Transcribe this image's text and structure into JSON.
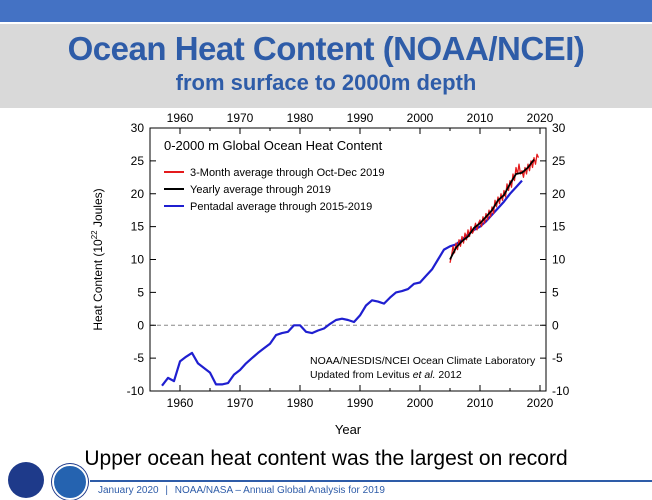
{
  "header": {
    "title": "Ocean Heat Content (NOAA/NCEI)",
    "subtitle": "from surface to 2000m depth"
  },
  "caption": "Upper ocean heat content was the largest on record",
  "footer": {
    "date": "January 2020",
    "separator": "|",
    "text": "NOAA/NASA – Annual Global Analysis for 2019"
  },
  "colors": {
    "header_band": "#4472c4",
    "title": "#2e5ca8",
    "three_month": "#e41a1c",
    "yearly": "#000000",
    "pentadal": "#1f1fd0"
  },
  "logos": [
    "nasa-logo",
    "noaa-logo"
  ],
  "chart_data": {
    "type": "line",
    "title": "0-2000 m Global Ocean Heat Content",
    "xlabel": "Year",
    "ylabel_main": "Heat Content (10",
    "ylabel_sup": "22",
    "ylabel_tail": " Joules)",
    "xlim": [
      1955,
      2021
    ],
    "ylim": [
      -10,
      30
    ],
    "xticks": [
      1960,
      1970,
      1980,
      1990,
      2000,
      2010,
      2020
    ],
    "yticks": [
      -10,
      -5,
      0,
      5,
      10,
      15,
      20,
      25,
      30
    ],
    "grid": false,
    "zero_line": "dashed",
    "legend_position": "top-left",
    "annotation_line1": "NOAA/NESDIS/NCEI Ocean Climate Laboratory",
    "annotation_line2_prefix": "Updated from Levitus ",
    "annotation_line2_italic": "et al.",
    "annotation_line2_suffix": " 2012",
    "series": [
      {
        "name": "3-Month average through Oct-Dec 2019",
        "color": "#e41a1c",
        "x": [
          2005.0,
          2005.25,
          2005.5,
          2005.75,
          2006.0,
          2006.25,
          2006.5,
          2006.75,
          2007.0,
          2007.25,
          2007.5,
          2007.75,
          2008.0,
          2008.25,
          2008.5,
          2008.75,
          2009.0,
          2009.25,
          2009.5,
          2009.75,
          2010.0,
          2010.25,
          2010.5,
          2010.75,
          2011.0,
          2011.25,
          2011.5,
          2011.75,
          2012.0,
          2012.25,
          2012.5,
          2012.75,
          2013.0,
          2013.25,
          2013.5,
          2013.75,
          2014.0,
          2014.25,
          2014.5,
          2014.75,
          2015.0,
          2015.25,
          2015.5,
          2015.75,
          2016.0,
          2016.25,
          2016.5,
          2016.75,
          2017.0,
          2017.25,
          2017.5,
          2017.75,
          2018.0,
          2018.25,
          2018.5,
          2018.75,
          2019.0,
          2019.25,
          2019.5,
          2019.75
        ],
        "values": [
          9.5,
          10.5,
          12.0,
          11.0,
          12.5,
          11.5,
          13.0,
          12.0,
          13.5,
          12.5,
          14.0,
          13.0,
          14.5,
          13.5,
          15.0,
          14.0,
          14.5,
          15.5,
          14.5,
          15.5,
          16.0,
          15.0,
          16.5,
          15.5,
          17.0,
          16.0,
          17.5,
          16.5,
          18.0,
          17.0,
          19.0,
          18.0,
          19.5,
          18.5,
          20.0,
          19.0,
          20.5,
          19.5,
          21.5,
          20.5,
          22.0,
          21.0,
          23.0,
          22.0,
          24.0,
          23.0,
          24.5,
          23.0,
          23.5,
          22.5,
          24.0,
          23.0,
          24.5,
          23.5,
          25.0,
          24.0,
          25.5,
          24.5,
          26.0,
          25.5
        ]
      },
      {
        "name": "Yearly average through 2019",
        "color": "#000000",
        "x": [
          2005,
          2006,
          2007,
          2008,
          2009,
          2010,
          2011,
          2012,
          2013,
          2014,
          2015,
          2016,
          2017,
          2018,
          2019
        ],
        "values": [
          10.0,
          11.8,
          12.8,
          13.5,
          14.8,
          15.5,
          16.5,
          17.5,
          19.0,
          19.8,
          21.5,
          23.0,
          23.2,
          24.0,
          25.2
        ]
      },
      {
        "name": "Pentadal average through 2015-2019",
        "color": "#1f1fd0",
        "x": [
          1957,
          1958,
          1959,
          1960,
          1961,
          1962,
          1963,
          1964,
          1965,
          1966,
          1967,
          1968,
          1969,
          1970,
          1971,
          1972,
          1973,
          1974,
          1975,
          1976,
          1977,
          1978,
          1979,
          1980,
          1981,
          1982,
          1983,
          1984,
          1985,
          1986,
          1987,
          1988,
          1989,
          1990,
          1991,
          1992,
          1993,
          1994,
          1995,
          1996,
          1997,
          1998,
          1999,
          2000,
          2001,
          2002,
          2003,
          2004,
          2005,
          2006,
          2007,
          2008,
          2009,
          2010,
          2011,
          2012,
          2013,
          2014,
          2015,
          2016,
          2017
        ],
        "values": [
          -9.2,
          -8.0,
          -8.5,
          -5.5,
          -4.8,
          -4.2,
          -5.8,
          -6.5,
          -7.2,
          -9.0,
          -9.0,
          -8.8,
          -7.5,
          -6.8,
          -5.8,
          -5.0,
          -4.2,
          -3.5,
          -2.8,
          -1.5,
          -1.2,
          -1.0,
          0.0,
          0.0,
          -1.0,
          -1.2,
          -0.8,
          -0.5,
          0.2,
          0.8,
          1.0,
          0.8,
          0.5,
          1.5,
          3.0,
          3.8,
          3.6,
          3.3,
          4.2,
          5.0,
          5.2,
          5.5,
          6.3,
          6.5,
          7.5,
          8.5,
          10.0,
          11.5,
          12.0,
          12.3,
          13.0,
          13.8,
          14.5,
          15.0,
          15.8,
          16.8,
          17.8,
          18.8,
          20.0,
          21.0,
          22.0
        ]
      }
    ]
  }
}
